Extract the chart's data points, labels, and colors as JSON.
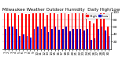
{
  "title": "Milwaukee Weather Outdoor Humidity",
  "subtitle": "Daily High/Low",
  "highs": [
    97,
    97,
    97,
    97,
    93,
    97,
    95,
    95,
    97,
    97,
    97,
    97,
    93,
    97,
    97,
    95,
    97,
    97,
    95,
    97,
    97,
    97,
    97,
    97,
    75,
    70,
    95,
    97,
    97,
    60
  ],
  "lows": [
    55,
    60,
    62,
    55,
    35,
    40,
    35,
    32,
    55,
    60,
    55,
    60,
    45,
    55,
    60,
    52,
    55,
    60,
    48,
    55,
    55,
    55,
    50,
    55,
    25,
    30,
    55,
    60,
    50,
    35
  ],
  "labels": [
    "1",
    "2",
    "3",
    "4",
    "5",
    "6",
    "7",
    "8",
    "9",
    "10",
    "11",
    "12",
    "13",
    "14",
    "15",
    "16",
    "17",
    "18",
    "19",
    "20",
    "21",
    "22",
    "23",
    "24",
    "25",
    "26",
    "27",
    "28",
    "29",
    "30"
  ],
  "high_color": "#ff0000",
  "low_color": "#0000cc",
  "background_color": "#ffffff",
  "ylim": [
    0,
    100
  ],
  "yticks": [
    20,
    40,
    60,
    80,
    100
  ],
  "vline_x": 21.5,
  "legend_high": "High",
  "legend_low": "Low",
  "bar_width": 0.38,
  "title_fontsize": 4.0,
  "tick_fontsize": 3.0,
  "legend_fontsize": 3.2
}
